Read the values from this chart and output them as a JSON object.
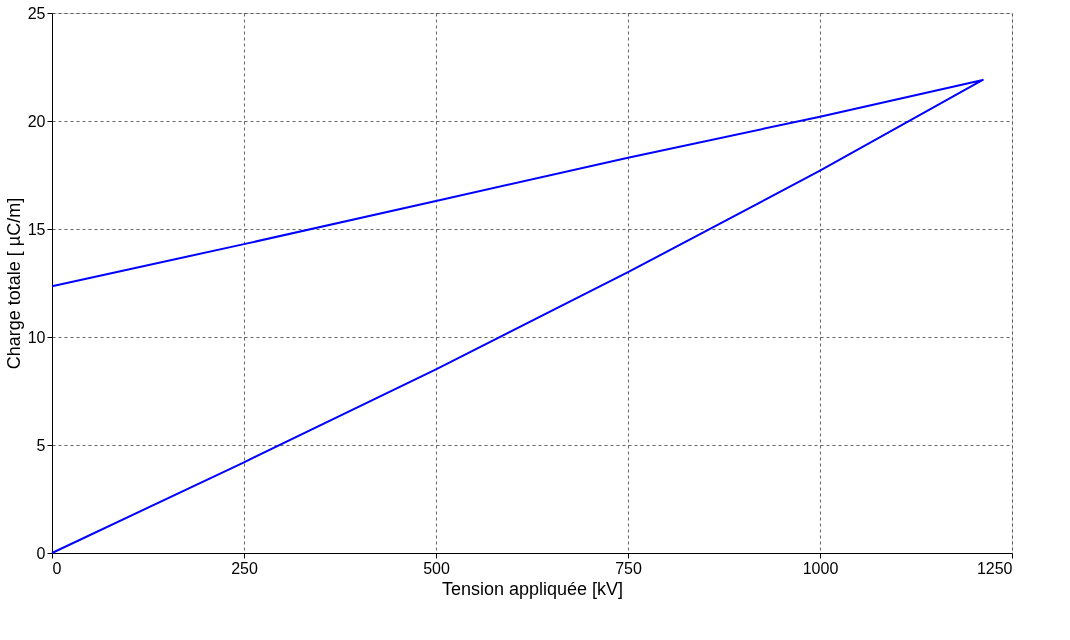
{
  "chart_data": {
    "type": "line",
    "xlabel": "Tension appliquée [kV]",
    "ylabel": "Charge totale [ µC/m]",
    "x": [
      0,
      250,
      500,
      750,
      1000,
      1212,
      1000,
      750,
      500,
      250,
      0
    ],
    "series": [
      {
        "color": "#0000ff",
        "values": [
          0,
          4.2,
          8.5,
          13.0,
          17.7,
          21.9,
          20.2,
          18.3,
          16.3,
          14.3,
          12.35
        ]
      }
    ],
    "xlim": [
      0,
      1250
    ],
    "xticks": [
      0,
      250,
      500,
      750,
      1000,
      1250
    ],
    "ylim": [
      0,
      25
    ],
    "yticks": [
      0,
      5,
      10,
      15,
      20,
      25
    ],
    "grid": true,
    "marker": "none",
    "line_style": "solid"
  }
}
